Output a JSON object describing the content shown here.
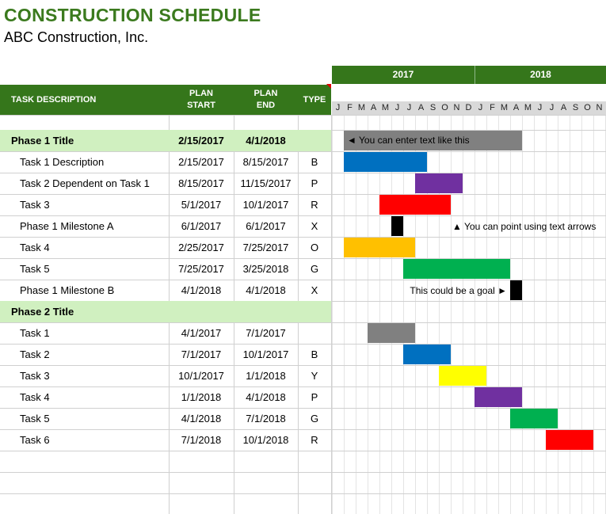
{
  "title": "CONSTRUCTION SCHEDULE",
  "company": "ABC Construction, Inc.",
  "columns": {
    "task": "TASK DESCRIPTION",
    "plan_start": "PLAN\nSTART",
    "plan_end": "PLAN\nEND",
    "type": "TYPE"
  },
  "years": [
    "2017",
    "2018"
  ],
  "months": [
    "J",
    "F",
    "M",
    "A",
    "M",
    "J",
    "J",
    "A",
    "S",
    "O",
    "N",
    "D",
    "J",
    "F",
    "M",
    "A",
    "M",
    "J",
    "J",
    "A",
    "S",
    "O",
    "N"
  ],
  "rows": [
    {
      "task": "Phase 1 Title",
      "start": "2/15/2017",
      "end": "4/1/2018",
      "type": "",
      "phase": true
    },
    {
      "task": "Task 1 Description",
      "start": "2/15/2017",
      "end": "8/15/2017",
      "type": "B"
    },
    {
      "task": "Task 2 Dependent on Task 1",
      "start": "8/15/2017",
      "end": "11/15/2017",
      "type": "P"
    },
    {
      "task": "Task 3",
      "start": "5/1/2017",
      "end": "10/1/2017",
      "type": "R"
    },
    {
      "task": "Phase 1 Milestone A",
      "start": "6/1/2017",
      "end": "6/1/2017",
      "type": "X"
    },
    {
      "task": "Task 4",
      "start": "2/25/2017",
      "end": "7/25/2017",
      "type": "O"
    },
    {
      "task": "Task 5",
      "start": "7/25/2017",
      "end": "3/25/2018",
      "type": "G"
    },
    {
      "task": "Phase 1 Milestone B",
      "start": "4/1/2018",
      "end": "4/1/2018",
      "type": "X"
    },
    {
      "task": "Phase 2 Title",
      "start": "",
      "end": "",
      "type": "",
      "phase": true
    },
    {
      "task": "Task 1",
      "start": "4/1/2017",
      "end": "7/1/2017",
      "type": ""
    },
    {
      "task": "Task 2",
      "start": "7/1/2017",
      "end": "10/1/2017",
      "type": "B"
    },
    {
      "task": "Task 3",
      "start": "10/1/2017",
      "end": "1/1/2018",
      "type": "Y"
    },
    {
      "task": "Task 4",
      "start": "1/1/2018",
      "end": "4/1/2018",
      "type": "P"
    },
    {
      "task": "Task 5",
      "start": "4/1/2018",
      "end": "7/1/2018",
      "type": "G"
    },
    {
      "task": "Task 6",
      "start": "7/1/2018",
      "end": "10/1/2018",
      "type": "R"
    }
  ],
  "gantt_bars": [
    {
      "row": 0,
      "start_month": 1,
      "end_month": 16,
      "color": "#808080",
      "label": "◄ You can enter text like this"
    },
    {
      "row": 1,
      "start_month": 1,
      "end_month": 8,
      "color": "#0070c0"
    },
    {
      "row": 2,
      "start_month": 7,
      "end_month": 11,
      "color": "#7030a0"
    },
    {
      "row": 3,
      "start_month": 4,
      "end_month": 10,
      "color": "#ff0000"
    },
    {
      "row": 4,
      "start_month": 5,
      "end_month": 6,
      "color": "#000000",
      "note": "▲ You can point using text arrows"
    },
    {
      "row": 5,
      "start_month": 1,
      "end_month": 7,
      "color": "#ffc000"
    },
    {
      "row": 6,
      "start_month": 6,
      "end_month": 15,
      "color": "#00b050"
    },
    {
      "row": 7,
      "start_month": 15,
      "end_month": 16,
      "color": "#000000",
      "note": "This could be a goal ►"
    },
    {
      "row": 9,
      "start_month": 3,
      "end_month": 7,
      "color": "#808080"
    },
    {
      "row": 10,
      "start_month": 6,
      "end_month": 10,
      "color": "#0070c0"
    },
    {
      "row": 11,
      "start_month": 9,
      "end_month": 13,
      "color": "#ffff00"
    },
    {
      "row": 12,
      "start_month": 12,
      "end_month": 16,
      "color": "#7030a0"
    },
    {
      "row": 13,
      "start_month": 15,
      "end_month": 19,
      "color": "#00b050"
    },
    {
      "row": 14,
      "start_month": 18,
      "end_month": 22,
      "color": "#ff0000"
    }
  ]
}
